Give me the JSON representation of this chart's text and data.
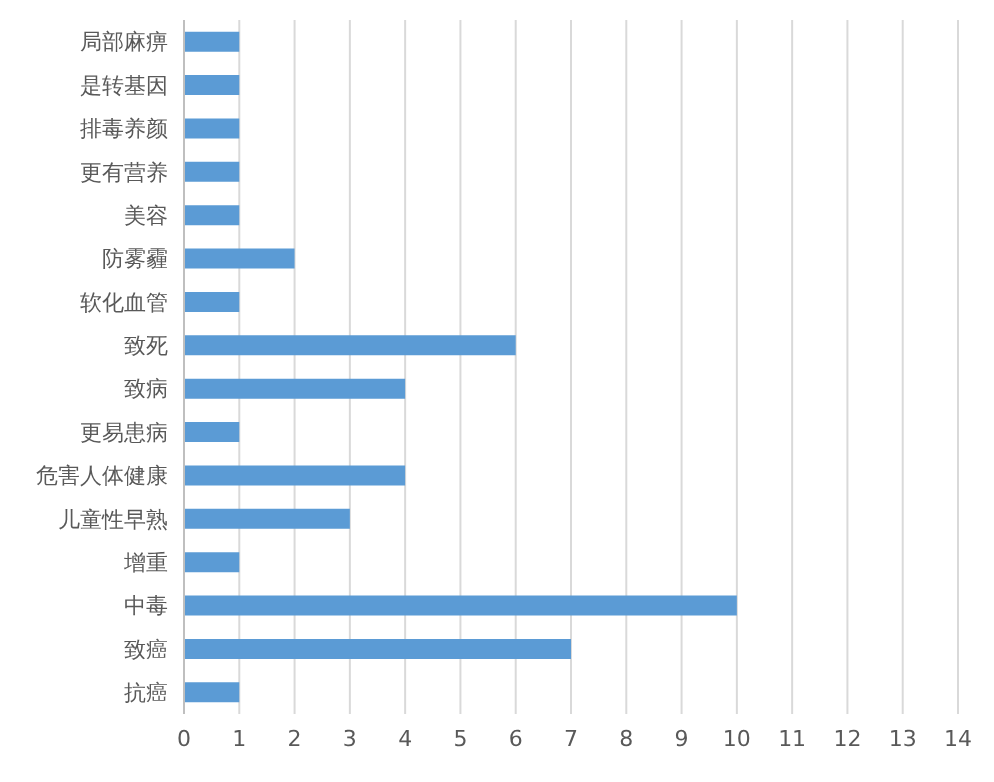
{
  "chart_data": {
    "type": "bar",
    "orientation": "horizontal",
    "categories": [
      "局部麻痹",
      "是转基因",
      "排毒养颜",
      "更有营养",
      "美容",
      "防雾霾",
      "软化血管",
      "致死",
      "致病",
      "更易患病",
      "危害人体健康",
      "儿童性早熟",
      "增重",
      "中毒",
      "致癌",
      "抗癌"
    ],
    "values": [
      1,
      1,
      1,
      1,
      1,
      2,
      1,
      6,
      4,
      1,
      4,
      3,
      1,
      10,
      7,
      1
    ],
    "color": "#5b9bd5",
    "xlim": [
      0,
      14
    ],
    "xticks": [
      0,
      1,
      2,
      3,
      4,
      5,
      6,
      7,
      8,
      9,
      10,
      11,
      12,
      13,
      14
    ],
    "grid": "x"
  }
}
